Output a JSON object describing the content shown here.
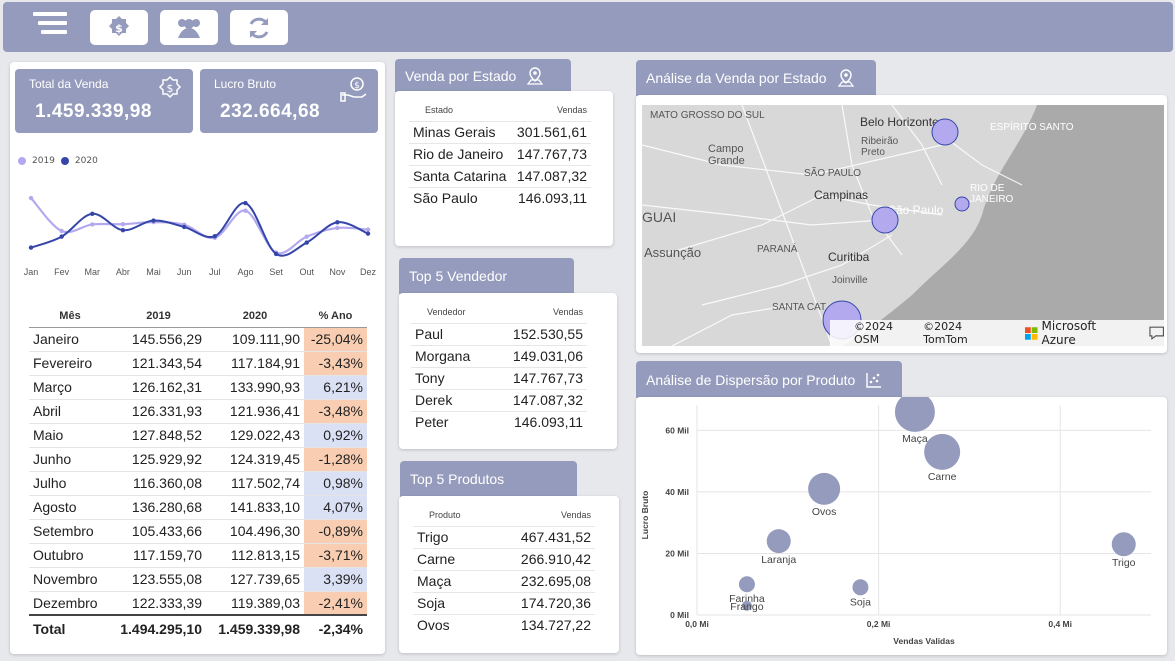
{
  "topbar": {
    "icons": [
      "menu-icon",
      "dollar-icon",
      "users-icon",
      "refresh-icon"
    ]
  },
  "kpis": {
    "total_label": "Total da Venda",
    "total_value": "1.459.339,98",
    "lucro_label": "Lucro Bruto",
    "lucro_value": "232.664,68"
  },
  "line_chart": {
    "legend": [
      "2019",
      "2020"
    ],
    "months": [
      "Jan",
      "Fev",
      "Mar",
      "Abr",
      "Mai",
      "Jun",
      "Jul",
      "Ago",
      "Set",
      "Out",
      "Nov",
      "Dez"
    ]
  },
  "monthly_table": {
    "headers": [
      "Mês",
      "2019",
      "2020",
      "% Ano"
    ],
    "rows": [
      [
        "Janeiro",
        "145.556,29",
        "109.111,90",
        "-25,04%"
      ],
      [
        "Fevereiro",
        "121.343,54",
        "117.184,91",
        "-3,43%"
      ],
      [
        "Março",
        "126.162,31",
        "133.990,93",
        "6,21%"
      ],
      [
        "Abril",
        "126.331,93",
        "121.936,41",
        "-3,48%"
      ],
      [
        "Maio",
        "127.848,52",
        "129.022,43",
        "0,92%"
      ],
      [
        "Junho",
        "125.929,92",
        "124.319,45",
        "-1,28%"
      ],
      [
        "Julho",
        "116.360,08",
        "117.502,74",
        "0,98%"
      ],
      [
        "Agosto",
        "136.280,68",
        "141.833,10",
        "4,07%"
      ],
      [
        "Setembro",
        "105.433,66",
        "104.496,30",
        "-0,89%"
      ],
      [
        "Outubro",
        "117.159,70",
        "112.813,15",
        "-3,71%"
      ],
      [
        "Novembro",
        "123.555,08",
        "127.739,65",
        "3,39%"
      ],
      [
        "Dezembro",
        "122.333,39",
        "119.389,03",
        "-2,41%"
      ]
    ],
    "total": [
      "Total",
      "1.494.295,10",
      "1.459.339,98",
      "-2,34%"
    ]
  },
  "estado": {
    "title": "Venda por Estado",
    "headers": [
      "Estado",
      "Vendas"
    ],
    "rows": [
      [
        "Minas Gerais",
        "301.561,61"
      ],
      [
        "Rio de Janeiro",
        "147.767,73"
      ],
      [
        "Santa Catarina",
        "147.087,32"
      ],
      [
        "São Paulo",
        "146.093,11"
      ]
    ]
  },
  "vendedor": {
    "title": "Top 5 Vendedor",
    "headers": [
      "Vendedor",
      "Vendas"
    ],
    "rows": [
      [
        "Paul",
        "152.530,55"
      ],
      [
        "Morgana",
        "149.031,06"
      ],
      [
        "Tony",
        "147.767,73"
      ],
      [
        "Derek",
        "147.087,32"
      ],
      [
        "Peter",
        "146.093,11"
      ]
    ]
  },
  "produtos": {
    "title": "Top 5 Produtos",
    "headers": [
      "Produto",
      "Vendas"
    ],
    "rows": [
      [
        "Trigo",
        "467.431,52"
      ],
      [
        "Carne",
        "266.910,42"
      ],
      [
        "Maça",
        "232.695,08"
      ],
      [
        "Soja",
        "174.720,36"
      ],
      [
        "Ovos",
        "134.727,22"
      ]
    ]
  },
  "map": {
    "title": "Análise da Venda por Estado",
    "labels": [
      "MATO GROSSO DO SUL",
      "Campo Grande",
      "Belo Horizonte",
      "Ribeirão Preto",
      "ESPÍRITO SANTO",
      "SÃO PAULO",
      "Campinas",
      "RIO DE JANEIRO",
      "São Paulo",
      "GUAI",
      "Assunção",
      "PARANÁ",
      "Curitiba",
      "Joinville",
      "SANTA CAT"
    ],
    "attribution": [
      "©2024 OSM",
      "©2024 TomTom",
      "Microsoft Azure"
    ]
  },
  "scatter": {
    "title": "Análise de Dispersão por Produto"
  },
  "chart_data": [
    {
      "type": "line",
      "x": [
        "Jan",
        "Fev",
        "Mar",
        "Abr",
        "Mai",
        "Jun",
        "Jul",
        "Ago",
        "Set",
        "Out",
        "Nov",
        "Dez"
      ],
      "series": [
        {
          "name": "2019",
          "values": [
            145556.29,
            121343.54,
            126162.31,
            126331.93,
            127848.52,
            125929.92,
            116360.08,
            136280.68,
            105433.66,
            117159.7,
            123555.08,
            122333.39
          ]
        },
        {
          "name": "2020",
          "values": [
            109111.9,
            117184.91,
            133990.93,
            121936.41,
            129022.43,
            124319.45,
            117502.74,
            141833.1,
            104496.3,
            112813.15,
            127739.65,
            119389.03
          ]
        }
      ],
      "colors": {
        "2019": "#b3a9ee",
        "2020": "#3546a8"
      },
      "legend": "top-left",
      "grid": false
    },
    {
      "type": "scatter",
      "xlabel": "Vendas Validas",
      "ylabel": "Lucro Bruto",
      "x_ticks": [
        "0,0 Mi",
        "0,2 Mi",
        "0,4 Mi"
      ],
      "y_ticks": [
        "0 Mil",
        "20 Mil",
        "40 Mil",
        "60 Mil"
      ],
      "xlim": [
        0,
        0.5
      ],
      "ylim": [
        0,
        65
      ],
      "points": [
        {
          "label": "Maça",
          "x": 0.24,
          "y": 66,
          "size": 20
        },
        {
          "label": "Carne",
          "x": 0.27,
          "y": 53,
          "size": 18
        },
        {
          "label": "Ovos",
          "x": 0.14,
          "y": 41,
          "size": 16
        },
        {
          "label": "Laranja",
          "x": 0.09,
          "y": 24,
          "size": 12
        },
        {
          "label": "Trigo",
          "x": 0.47,
          "y": 23,
          "size": 12
        },
        {
          "label": "Farinha",
          "x": 0.055,
          "y": 10,
          "size": 8
        },
        {
          "label": "Soja",
          "x": 0.18,
          "y": 9,
          "size": 8
        },
        {
          "label": "Frango",
          "x": 0.055,
          "y": 3,
          "size": 5
        }
      ],
      "color": "#959bbc",
      "grid": true
    }
  ]
}
